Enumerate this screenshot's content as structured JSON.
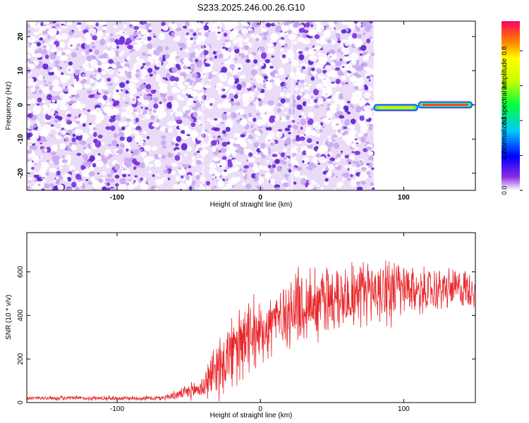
{
  "title": "S233.2025.246.00.26.G10",
  "chart_data": [
    {
      "type": "heatmap",
      "title": "S233.2025.246.00.26.G10",
      "xlabel": "Height of straight line (km)",
      "ylabel": "Frequency (Hz)",
      "xlim": [
        -163,
        150
      ],
      "ylim": [
        -25,
        24.5
      ],
      "x_ticks": [
        -100,
        0,
        100
      ],
      "y_ticks": [
        -20,
        -10,
        0,
        10,
        20
      ],
      "colorbar": {
        "label": "Normalized spectral amplitude",
        "range": [
          0,
          0.97
        ],
        "ticks": [
          0.0,
          0.2,
          0.4,
          0.6,
          0.8
        ]
      },
      "noise_region_x": [
        -163,
        79
      ],
      "signal_band": {
        "x": [
          79,
          150
        ],
        "freq_center": 0,
        "segments": [
          {
            "x0": 79,
            "x1": 110,
            "freq": -0.8,
            "amp": 0.78
          },
          {
            "x0": 110,
            "x1": 148,
            "freq": 0.0,
            "amp": 0.92
          }
        ]
      },
      "noise_amp_range": [
        0.02,
        0.18
      ]
    },
    {
      "type": "line",
      "xlabel": "Height of straight line (km)",
      "ylabel": "SNR (10 * v/v)",
      "xlim": [
        -163,
        150
      ],
      "ylim": [
        0,
        780
      ],
      "x_ticks": [
        -100,
        0,
        100
      ],
      "y_ticks": [
        0,
        200,
        400,
        600
      ],
      "series": [
        {
          "name": "SNR",
          "color": "#e8262a",
          "envelope": [
            {
              "x": -163,
              "mean": 20,
              "spread": 10
            },
            {
              "x": -70,
              "mean": 20,
              "spread": 12
            },
            {
              "x": -55,
              "mean": 40,
              "spread": 25
            },
            {
              "x": -40,
              "mean": 70,
              "spread": 60
            },
            {
              "x": -30,
              "mean": 170,
              "spread": 150
            },
            {
              "x": -15,
              "mean": 250,
              "spread": 180
            },
            {
              "x": 0,
              "mean": 330,
              "spread": 160
            },
            {
              "x": 10,
              "mean": 380,
              "spread": 170
            },
            {
              "x": 25,
              "mean": 430,
              "spread": 180
            },
            {
              "x": 40,
              "mean": 470,
              "spread": 190
            },
            {
              "x": 60,
              "mean": 500,
              "spread": 160
            },
            {
              "x": 85,
              "mean": 520,
              "spread": 170
            },
            {
              "x": 110,
              "mean": 510,
              "spread": 110
            },
            {
              "x": 130,
              "mean": 520,
              "spread": 100
            },
            {
              "x": 150,
              "mean": 525,
              "spread": 90
            }
          ]
        }
      ]
    }
  ]
}
